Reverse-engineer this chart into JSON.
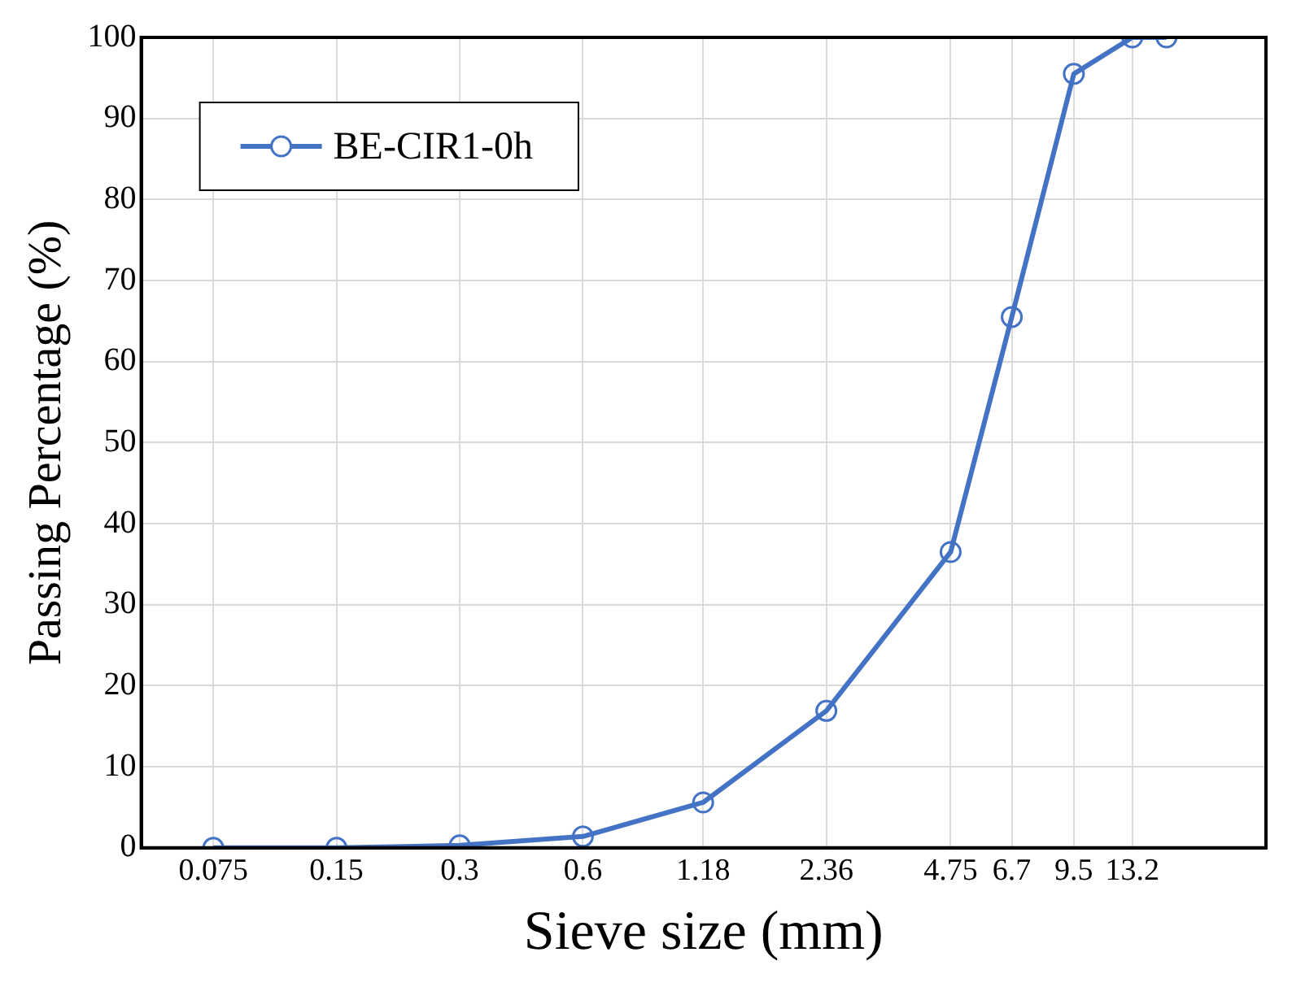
{
  "chart_data": {
    "type": "line",
    "xlabel": "Sieve size (mm)",
    "ylabel": "Passing Percentage (%)",
    "x": [
      0.075,
      0.15,
      0.3,
      0.6,
      1.18,
      2.36,
      4.75,
      6.7,
      9.5,
      13.2,
      16
    ],
    "series": [
      {
        "name": "BE-CIR1-0h",
        "color": "#4472c4",
        "values": [
          0,
          0,
          0.3,
          1.4,
          5.6,
          16.9,
          36.5,
          65.5,
          95.5,
          100,
          100
        ]
      }
    ],
    "log": "x",
    "xlim": [
      0.05,
      28
    ],
    "xticks": [
      0.075,
      0.15,
      0.3,
      0.6,
      1.18,
      2.36,
      4.75,
      6.7,
      9.5,
      13.2
    ],
    "ylim": [
      0,
      100
    ],
    "yticks": [
      0,
      10,
      20,
      30,
      40,
      50,
      60,
      70,
      80,
      90,
      100
    ],
    "grid": true,
    "legend": "top left",
    "marker": "circle",
    "line_style": "solid"
  }
}
